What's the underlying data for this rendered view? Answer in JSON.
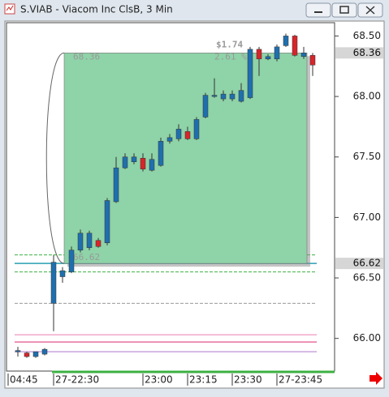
{
  "window_title": "S.VIAB - Viacom Inc ClsB, 3 Min",
  "chart_data": {
    "type": "candlestick",
    "categories": [
      "04:45",
      null,
      null,
      null,
      "27-22:30",
      null,
      null,
      null,
      null,
      null,
      null,
      null,
      null,
      null,
      "23:00",
      null,
      null,
      null,
      null,
      "23:15",
      null,
      null,
      null,
      null,
      "23:30",
      null,
      null,
      null,
      null,
      "27-23:45",
      null,
      null,
      null,
      null
    ],
    "open": [
      65.89,
      65.88,
      65.85,
      65.87,
      66.29,
      66.51,
      66.55,
      66.73,
      66.75,
      66.81,
      66.79,
      67.13,
      67.41,
      67.46,
      67.49,
      67.39,
      67.43,
      67.63,
      67.65,
      67.71,
      67.65,
      67.83,
      68.0,
      67.98,
      67.98,
      67.96,
      67.99,
      68.39,
      68.31,
      68.31,
      68.42,
      68.5,
      68.33,
      68.34
    ],
    "high": [
      65.93,
      65.89,
      65.89,
      65.92,
      66.69,
      66.59,
      66.76,
      66.9,
      66.89,
      66.83,
      67.16,
      67.5,
      67.53,
      67.53,
      67.53,
      67.53,
      67.66,
      67.69,
      67.77,
      67.75,
      67.83,
      68.03,
      68.15,
      68.05,
      68.05,
      68.11,
      68.41,
      68.41,
      68.35,
      68.43,
      68.52,
      68.51,
      68.41,
      68.36
    ],
    "low": [
      65.85,
      65.84,
      65.84,
      65.86,
      66.06,
      66.46,
      66.54,
      66.71,
      66.73,
      66.75,
      66.77,
      67.12,
      67.4,
      67.44,
      67.38,
      67.38,
      67.42,
      67.61,
      67.63,
      67.64,
      67.64,
      67.82,
      67.99,
      67.96,
      67.96,
      67.95,
      67.98,
      68.17,
      68.3,
      68.29,
      68.41,
      68.33,
      68.31,
      68.17
    ],
    "close": [
      65.9,
      65.85,
      65.89,
      65.91,
      66.63,
      66.56,
      66.73,
      66.87,
      66.87,
      66.76,
      67.14,
      67.41,
      67.5,
      67.5,
      67.4,
      67.48,
      67.63,
      67.66,
      67.73,
      67.65,
      67.81,
      68.01,
      68.01,
      68.02,
      68.02,
      68.05,
      68.39,
      68.31,
      68.33,
      68.41,
      68.5,
      68.34,
      68.36,
      68.26
    ],
    "up_color": "#1f6fae",
    "down_color": "#d8242a",
    "ylim": [
      65.73,
      68.61
    ],
    "yticks": [
      {
        "value": 66.0,
        "label": "66.00"
      },
      {
        "value": 66.5,
        "label": "66.50"
      },
      {
        "value": 67.0,
        "label": "67.00"
      },
      {
        "value": 67.5,
        "label": "67.50"
      },
      {
        "value": 68.0,
        "label": "68.00"
      },
      {
        "value": 68.5,
        "label": "68.50"
      }
    ],
    "levels": [
      {
        "value": 66.69,
        "color": "#3cb043",
        "style": "dashed"
      },
      {
        "value": 66.55,
        "color": "#3cb043",
        "style": "dashed"
      },
      {
        "value": 66.62,
        "color": "#2a9fb0",
        "style": "solid"
      },
      {
        "value": 66.29,
        "color": "#9a9a9a",
        "style": "dashed"
      },
      {
        "value": 66.03,
        "color": "#f2a7c9",
        "style": "solid"
      },
      {
        "value": 65.97,
        "color": "#e8719d",
        "style": "solid"
      },
      {
        "value": 65.89,
        "color": "#c9a3dd",
        "style": "solid"
      }
    ],
    "measure": {
      "high": 68.36,
      "low": 66.62,
      "change_label": "$1.74",
      "percent_label": "2.61 %",
      "color": "#8fd3a8"
    },
    "price_markers": [
      68.36,
      66.62
    ]
  }
}
